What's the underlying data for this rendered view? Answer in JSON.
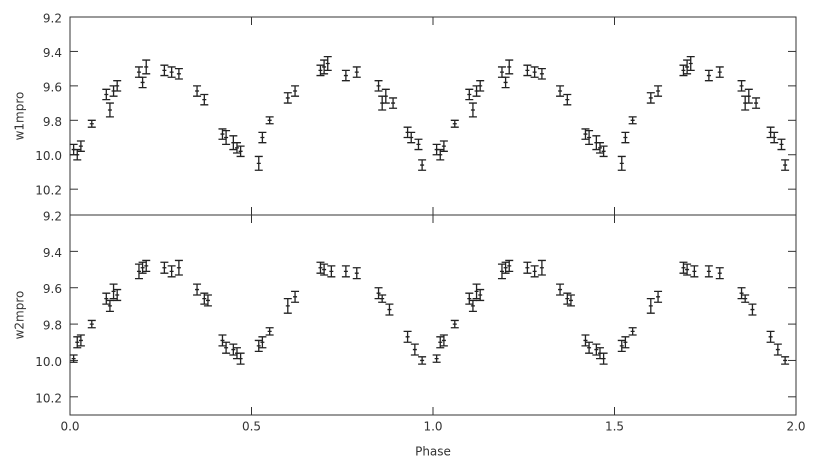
{
  "chart_data": [
    {
      "type": "errorbar",
      "y_label": "w1mpro",
      "xlim": [
        0,
        2
      ],
      "ylim": [
        9.2,
        10.35
      ],
      "inverted_y": true,
      "yticks": [
        9.2,
        9.4,
        9.6,
        9.8,
        {
          "value": 10,
          "label": "10.0"
        },
        10.2
      ],
      "series": [
        {
          "color": "#222222",
          "x": [
            0.01,
            0.02,
            0.03,
            0.06,
            0.1,
            0.11,
            0.12,
            0.13,
            0.19,
            0.2,
            0.21,
            0.26,
            0.28,
            0.3,
            0.35,
            0.37,
            0.42,
            0.43,
            0.45,
            0.46,
            0.47,
            0.52,
            0.53,
            0.55,
            0.6,
            0.62,
            0.69,
            0.7,
            0.71,
            0.76,
            0.79,
            0.85,
            0.86,
            0.87,
            0.89,
            0.93,
            0.94,
            0.96,
            0.97,
            1.01,
            1.02,
            1.03,
            1.06,
            1.1,
            1.11,
            1.12,
            1.13,
            1.19,
            1.2,
            1.21,
            1.26,
            1.28,
            1.3,
            1.35,
            1.37,
            1.42,
            1.43,
            1.45,
            1.46,
            1.47,
            1.52,
            1.53,
            1.55,
            1.6,
            1.62,
            1.69,
            1.7,
            1.71,
            1.76,
            1.79,
            1.85,
            1.86,
            1.87,
            1.89,
            1.93,
            1.94,
            1.96,
            1.97
          ],
          "values": [
            9.97,
            10,
            9.95,
            9.82,
            9.65,
            9.74,
            9.63,
            9.6,
            9.52,
            9.58,
            9.49,
            9.51,
            9.52,
            9.53,
            9.63,
            9.68,
            9.88,
            9.9,
            9.93,
            9.96,
            9.98,
            10.05,
            9.9,
            9.8,
            9.67,
            9.63,
            9.51,
            9.49,
            9.47,
            9.54,
            9.52,
            9.6,
            9.7,
            9.66,
            9.7,
            9.87,
            9.9,
            9.94,
            10.06,
            9.97,
            10,
            9.95,
            9.82,
            9.65,
            9.74,
            9.63,
            9.6,
            9.52,
            9.58,
            9.49,
            9.51,
            9.52,
            9.53,
            9.63,
            9.68,
            9.88,
            9.9,
            9.93,
            9.96,
            9.98,
            10.05,
            9.9,
            9.8,
            9.67,
            9.63,
            9.51,
            9.49,
            9.47,
            9.54,
            9.52,
            9.6,
            9.7,
            9.66,
            9.7,
            9.87,
            9.9,
            9.94,
            10.06
          ],
          "errors": [
            0.03,
            0.03,
            0.03,
            0.02,
            0.03,
            0.04,
            0.03,
            0.03,
            0.03,
            0.03,
            0.04,
            0.03,
            0.03,
            0.03,
            0.03,
            0.03,
            0.03,
            0.04,
            0.04,
            0.03,
            0.03,
            0.04,
            0.03,
            0.02,
            0.03,
            0.03,
            0.03,
            0.04,
            0.04,
            0.03,
            0.03,
            0.03,
            0.04,
            0.04,
            0.03,
            0.03,
            0.03,
            0.03,
            0.03,
            0.03,
            0.03,
            0.03,
            0.02,
            0.03,
            0.04,
            0.03,
            0.03,
            0.03,
            0.03,
            0.04,
            0.03,
            0.03,
            0.03,
            0.03,
            0.03,
            0.03,
            0.04,
            0.04,
            0.03,
            0.03,
            0.04,
            0.03,
            0.02,
            0.03,
            0.03,
            0.03,
            0.04,
            0.04,
            0.03,
            0.03,
            0.03,
            0.04,
            0.04,
            0.03,
            0.03,
            0.03,
            0.03,
            0.03
          ]
        }
      ]
    },
    {
      "type": "errorbar",
      "y_label": "w2mpro",
      "x_label": "Phase",
      "xlim": [
        0,
        2
      ],
      "ylim": [
        9.2,
        10.3
      ],
      "inverted_y": true,
      "xticks": [
        {
          "value": 0,
          "label": "0.0"
        },
        0.5,
        {
          "value": 1,
          "label": "1.0"
        },
        1.5,
        {
          "value": 2,
          "label": "2.0"
        }
      ],
      "yticks": [
        9.2,
        9.4,
        9.6,
        9.8,
        {
          "value": 10,
          "label": "10.0"
        },
        10.2
      ],
      "series": [
        {
          "color": "#222222",
          "x": [
            0.01,
            0.02,
            0.03,
            0.06,
            0.1,
            0.11,
            0.12,
            0.13,
            0.19,
            0.2,
            0.21,
            0.26,
            0.28,
            0.3,
            0.35,
            0.37,
            0.38,
            0.42,
            0.43,
            0.45,
            0.46,
            0.47,
            0.52,
            0.53,
            0.55,
            0.6,
            0.62,
            0.69,
            0.7,
            0.72,
            0.76,
            0.79,
            0.85,
            0.86,
            0.88,
            0.93,
            0.95,
            0.97,
            1.01,
            1.02,
            1.03,
            1.06,
            1.1,
            1.11,
            1.12,
            1.13,
            1.19,
            1.2,
            1.21,
            1.26,
            1.28,
            1.3,
            1.35,
            1.37,
            1.38,
            1.42,
            1.43,
            1.45,
            1.46,
            1.47,
            1.52,
            1.53,
            1.55,
            1.6,
            1.62,
            1.69,
            1.7,
            1.72,
            1.76,
            1.79,
            1.85,
            1.86,
            1.88,
            1.93,
            1.95,
            1.97
          ],
          "values": [
            9.99,
            9.9,
            9.89,
            9.8,
            9.66,
            9.7,
            9.62,
            9.64,
            9.51,
            9.49,
            9.48,
            9.49,
            9.51,
            9.49,
            9.61,
            9.66,
            9.67,
            9.89,
            9.93,
            9.94,
            9.96,
            9.99,
            9.92,
            9.9,
            9.84,
            9.7,
            9.65,
            9.49,
            9.5,
            9.51,
            9.51,
            9.52,
            9.63,
            9.66,
            9.72,
            9.87,
            9.94,
            10,
            9.99,
            9.9,
            9.89,
            9.8,
            9.66,
            9.7,
            9.62,
            9.64,
            9.51,
            9.49,
            9.48,
            9.49,
            9.51,
            9.49,
            9.61,
            9.66,
            9.67,
            9.89,
            9.93,
            9.94,
            9.96,
            9.99,
            9.92,
            9.9,
            9.84,
            9.7,
            9.65,
            9.49,
            9.5,
            9.51,
            9.51,
            9.52,
            9.63,
            9.66,
            9.72,
            9.87,
            9.94,
            10
          ],
          "errors": [
            0.02,
            0.03,
            0.03,
            0.02,
            0.03,
            0.03,
            0.04,
            0.03,
            0.04,
            0.03,
            0.03,
            0.03,
            0.03,
            0.04,
            0.03,
            0.03,
            0.03,
            0.03,
            0.03,
            0.03,
            0.03,
            0.03,
            0.03,
            0.03,
            0.02,
            0.04,
            0.03,
            0.03,
            0.03,
            0.03,
            0.03,
            0.03,
            0.03,
            0.02,
            0.03,
            0.03,
            0.03,
            0.02,
            0.02,
            0.03,
            0.03,
            0.02,
            0.03,
            0.03,
            0.04,
            0.03,
            0.04,
            0.03,
            0.03,
            0.03,
            0.03,
            0.04,
            0.03,
            0.03,
            0.03,
            0.03,
            0.03,
            0.03,
            0.03,
            0.03,
            0.03,
            0.03,
            0.02,
            0.04,
            0.03,
            0.03,
            0.03,
            0.03,
            0.03,
            0.03,
            0.03,
            0.02,
            0.03,
            0.03,
            0.03,
            0.02
          ]
        }
      ]
    }
  ]
}
